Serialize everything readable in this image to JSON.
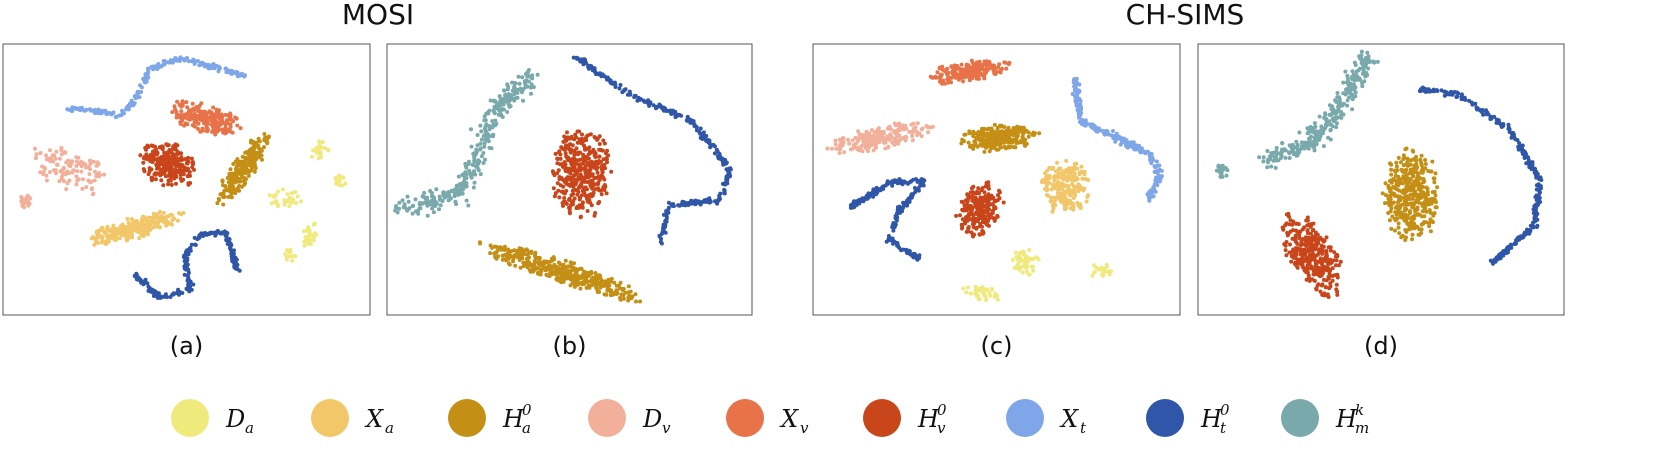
{
  "titles": [
    "MOSI",
    "CH-SIMS"
  ],
  "panels": [
    {
      "label": "(a)"
    },
    {
      "label": "(b)"
    },
    {
      "label": "(c)"
    },
    {
      "label": "(d)"
    }
  ],
  "legend": [
    {
      "symbol": "D",
      "sub": "a",
      "color": "#f0ea7c"
    },
    {
      "symbol": "X",
      "sub": "a",
      "color": "#f2c76a"
    },
    {
      "symbol": "H",
      "sub": "a",
      "sup": "0",
      "color": "#c48f15"
    },
    {
      "symbol": "D",
      "sub": "v",
      "color": "#f2b09a"
    },
    {
      "symbol": "X",
      "sub": "v",
      "color": "#e87348"
    },
    {
      "symbol": "H",
      "sub": "v",
      "sup": "0",
      "color": "#c9451a"
    },
    {
      "symbol": "X",
      "sub": "t",
      "color": "#7ea6e8"
    },
    {
      "symbol": "H",
      "sub": "t",
      "sup": "0",
      "color": "#2f56a8"
    },
    {
      "symbol": "H",
      "sub": "m",
      "sup": "k",
      "color": "#79a9ab"
    }
  ]
}
